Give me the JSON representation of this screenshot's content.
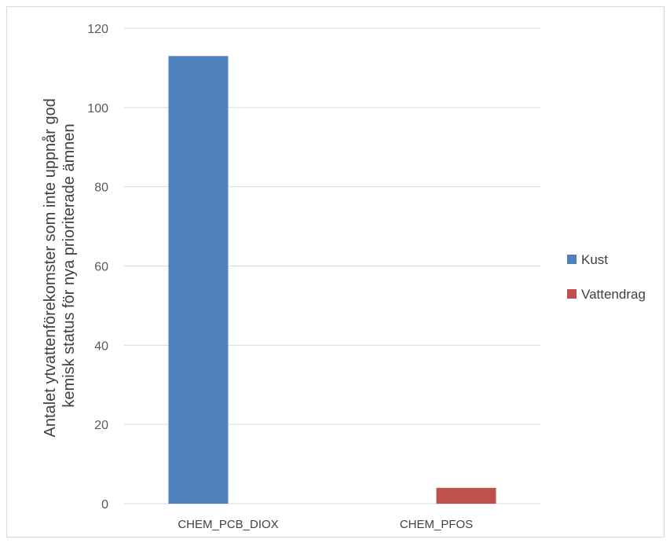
{
  "chart_data": {
    "type": "bar",
    "ylabel_lines": [
      "Antalet ytvattenförekomster som inte uppnår god",
      "kemisk status för nya prioriterade ämnen"
    ],
    "categories": [
      "CHEM_PCB_DIOX",
      "CHEM_PFOS"
    ],
    "series": [
      {
        "name": "Kust",
        "color": "#4f81bd",
        "values": [
          113,
          0
        ]
      },
      {
        "name": "Vattendrag",
        "color": "#c0504d",
        "values": [
          0,
          4
        ]
      }
    ],
    "ylim": [
      0,
      120
    ],
    "yticks": [
      0,
      20,
      40,
      60,
      80,
      100,
      120
    ],
    "grid": true,
    "legend": "right"
  }
}
